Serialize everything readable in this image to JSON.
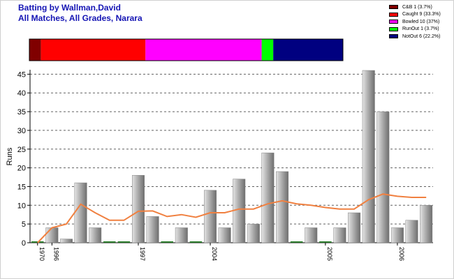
{
  "header": {
    "title_line1": "Batting by Wallman,David",
    "title_line2": "All Matches, All Grades, Narara"
  },
  "dismissals": [
    {
      "label": "C&B 1 (3.7%)",
      "count": 1,
      "color": "#800000"
    },
    {
      "label": "Caught 9 (33.3%)",
      "count": 9,
      "color": "#ff0000"
    },
    {
      "label": "Bowled 10 (37%)",
      "count": 10,
      "color": "#ff00ff"
    },
    {
      "label": "RunOut 1 (3.7%)",
      "count": 1,
      "color": "#00ff00"
    },
    {
      "label": "NotOut 6 (22.2%)",
      "count": 6,
      "color": "#000080"
    }
  ],
  "chart_data": {
    "type": "bar",
    "ylabel": "Runs",
    "ylim": [
      0,
      46
    ],
    "yticks": [
      0,
      5,
      10,
      15,
      20,
      25,
      30,
      35,
      40,
      45
    ],
    "grid": true,
    "legend_position": "top-right",
    "bar_color": "#a0a0a0",
    "average_line_color": "#f08040",
    "x_tick_labels": [
      {
        "index": 0,
        "label": "1970"
      },
      {
        "index": 1,
        "label": "1996"
      },
      {
        "index": 7,
        "label": "1997"
      },
      {
        "index": 12,
        "label": "2004"
      },
      {
        "index": 20,
        "label": "2005"
      },
      {
        "index": 25,
        "label": "2006"
      }
    ],
    "series": [
      {
        "type": "bar",
        "values": [
          0,
          4,
          1,
          16,
          4,
          0,
          0,
          18,
          7,
          0,
          4,
          0,
          14,
          4,
          17,
          5,
          24,
          19,
          0,
          4,
          0,
          4,
          8,
          46,
          35,
          4,
          6,
          10
        ]
      },
      {
        "type": "line",
        "values": [
          0,
          4,
          5,
          10.3,
          8,
          6,
          6,
          8.4,
          8.5,
          7,
          7.5,
          6.8,
          8,
          8,
          9,
          9,
          10.4,
          11.2,
          10.4,
          10,
          9.4,
          9,
          9,
          11.5,
          13,
          12.4,
          12.1,
          12.1
        ]
      }
    ]
  }
}
